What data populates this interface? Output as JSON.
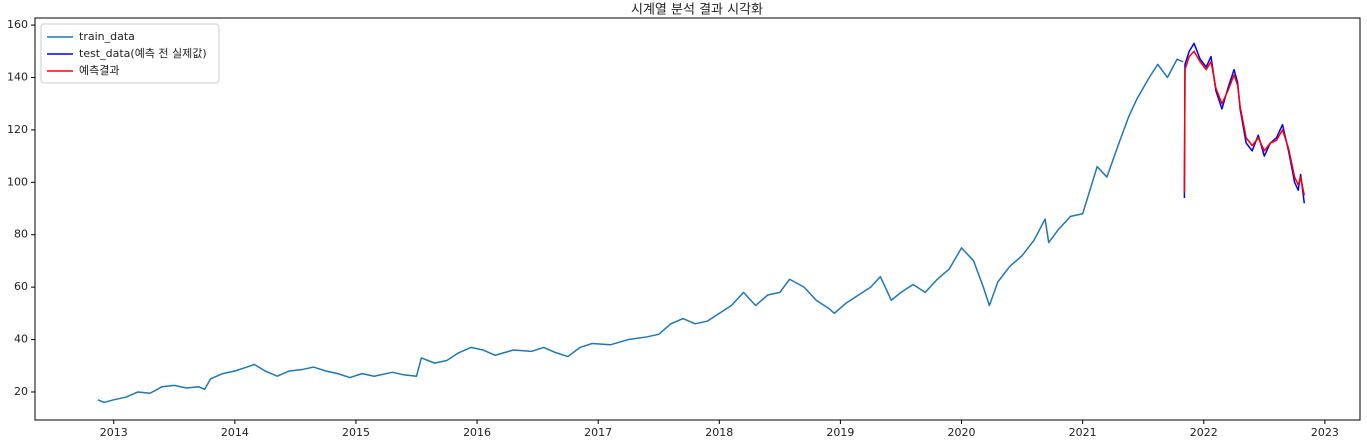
{
  "chart_data": {
    "type": "line",
    "title": "시계열 분석 결과 시각화",
    "xlim": [
      2012.35,
      2023.29
    ],
    "xticks": [
      2013,
      2014,
      2015,
      2016,
      2017,
      2018,
      2019,
      2020,
      2021,
      2022,
      2023
    ],
    "ylim": [
      9.3,
      162.7
    ],
    "yticks": [
      20,
      40,
      60,
      80,
      100,
      120,
      140,
      160
    ],
    "grid": false,
    "legend": "upper left",
    "series": [
      {
        "name": "train_data",
        "color": "#1f77b4",
        "x": [
          2012.87,
          2012.92,
          2013.0,
          2013.1,
          2013.2,
          2013.3,
          2013.4,
          2013.5,
          2013.6,
          2013.7,
          2013.75,
          2013.8,
          2013.9,
          2014.0,
          2014.1,
          2014.16,
          2014.25,
          2014.35,
          2014.45,
          2014.55,
          2014.65,
          2014.75,
          2014.85,
          2014.95,
          2015.05,
          2015.15,
          2015.3,
          2015.4,
          2015.5,
          2015.54,
          2015.65,
          2015.75,
          2015.85,
          2015.95,
          2016.05,
          2016.15,
          2016.3,
          2016.45,
          2016.55,
          2016.65,
          2016.75,
          2016.85,
          2016.95,
          2017.1,
          2017.25,
          2017.4,
          2017.5,
          2017.6,
          2017.7,
          2017.8,
          2017.9,
          2018.0,
          2018.1,
          2018.2,
          2018.3,
          2018.4,
          2018.5,
          2018.58,
          2018.7,
          2018.8,
          2018.9,
          2018.95,
          2019.05,
          2019.15,
          2019.25,
          2019.33,
          2019.42,
          2019.5,
          2019.6,
          2019.7,
          2019.8,
          2019.9,
          2020.0,
          2020.1,
          2020.18,
          2020.23,
          2020.3,
          2020.4,
          2020.5,
          2020.6,
          2020.69,
          2020.72,
          2020.8,
          2020.9,
          2021.0,
          2021.08,
          2021.12,
          2021.2,
          2021.3,
          2021.38,
          2021.45,
          2021.55,
          2021.62,
          2021.7,
          2021.78,
          2021.83
        ],
        "values": [
          17,
          16,
          17,
          18,
          20,
          19.5,
          22,
          22.5,
          21.5,
          22,
          21,
          25,
          27,
          28,
          29.5,
          30.5,
          28,
          26,
          28,
          28.5,
          29.5,
          28,
          27,
          25.5,
          27,
          26,
          27.5,
          26.5,
          26,
          33,
          31,
          32,
          35,
          37,
          36,
          34,
          36,
          35.5,
          37,
          35,
          33.5,
          37,
          38.5,
          38,
          40,
          41,
          42,
          46,
          48,
          46,
          47,
          50,
          53,
          58,
          53,
          57,
          58,
          63,
          60,
          55,
          52,
          50,
          54,
          57,
          60,
          64,
          55,
          58,
          61,
          58,
          63,
          67,
          75,
          70,
          60,
          53,
          62,
          68,
          72,
          78,
          86,
          77,
          82,
          87,
          88,
          100,
          106,
          102,
          115,
          125,
          132,
          140,
          145,
          140,
          147,
          146
        ]
      },
      {
        "name": "test_data(예측 전 실제값)",
        "color": "#0000ff",
        "x": [
          2021.84,
          2021.845,
          2021.88,
          2021.92,
          2021.97,
          2022.02,
          2022.06,
          2022.1,
          2022.15,
          2022.2,
          2022.25,
          2022.28,
          2022.3,
          2022.35,
          2022.4,
          2022.45,
          2022.5,
          2022.55,
          2022.6,
          2022.65,
          2022.7,
          2022.75,
          2022.78,
          2022.8,
          2022.83
        ],
        "values": [
          94,
          145,
          150,
          153,
          147,
          144,
          148,
          135,
          128,
          136,
          143,
          138,
          128,
          115,
          112,
          118,
          110,
          115,
          117,
          122,
          112,
          100,
          97,
          103,
          92
        ]
      },
      {
        "name": "예측결과",
        "color": "#ff0000",
        "x": [
          2021.84,
          2021.845,
          2021.88,
          2021.92,
          2021.97,
          2022.02,
          2022.06,
          2022.1,
          2022.15,
          2022.2,
          2022.25,
          2022.28,
          2022.3,
          2022.35,
          2022.4,
          2022.45,
          2022.5,
          2022.55,
          2022.6,
          2022.65,
          2022.7,
          2022.75,
          2022.78,
          2022.8,
          2022.83
        ],
        "values": [
          96,
          143,
          148,
          150,
          146,
          143,
          146,
          136,
          130,
          135,
          141,
          137,
          129,
          117,
          114,
          117,
          112,
          115,
          116,
          120,
          113,
          102,
          99,
          102,
          95
        ]
      }
    ]
  }
}
